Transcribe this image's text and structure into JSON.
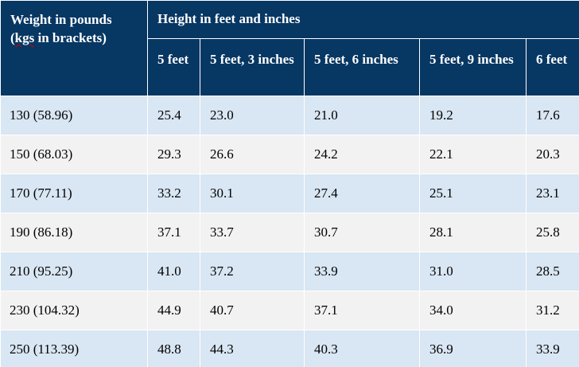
{
  "table": {
    "corner_header": {
      "line1": "Weight in pounds",
      "line2_prefix": "(",
      "line2_misspelled": "kgs",
      "line2_suffix": " in brackets)"
    },
    "group_header": "Height in feet and inches",
    "height_columns": [
      "5 feet",
      "5 feet, 3 inches",
      "5 feet, 6 inches",
      "5 feet, 9 inches",
      "6 feet"
    ],
    "rows": [
      {
        "weight": "130 (58.96)",
        "values": [
          "25.4",
          "23.0",
          "21.0",
          "19.2",
          "17.6"
        ]
      },
      {
        "weight": "150 (68.03)",
        "values": [
          "29.3",
          "26.6",
          "24.2",
          "22.1",
          "20.3"
        ]
      },
      {
        "weight": "170 (77.11)",
        "values": [
          "33.2",
          "30.1",
          "27.4",
          "25.1",
          "23.1"
        ]
      },
      {
        "weight": "190 (86.18)",
        "values": [
          "37.1",
          "33.7",
          "30.7",
          "28.1",
          "25.8"
        ]
      },
      {
        "weight": "210 (95.25)",
        "values": [
          "41.0",
          "37.2",
          "33.9",
          "31.0",
          "28.5"
        ]
      },
      {
        "weight": "230 (104.32)",
        "values": [
          "44.9",
          "40.7",
          "37.1",
          "34.0",
          "31.2"
        ]
      },
      {
        "weight": "250 (113.39)",
        "values": [
          "48.8",
          "44.3",
          "40.3",
          "36.9",
          "33.9"
        ]
      }
    ]
  },
  "colors": {
    "header_bg": "#073763",
    "row_odd_bg": "#d9e6f3",
    "row_even_bg": "#f2f2f2"
  }
}
